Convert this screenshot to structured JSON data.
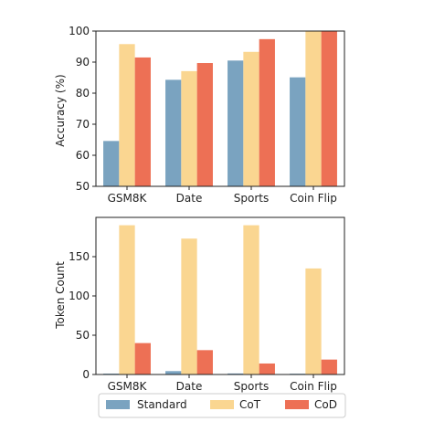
{
  "colors": {
    "Standard": "#7aa3c0",
    "CoT": "#fad691",
    "CoD": "#ed7055",
    "axis": "#222222",
    "legend_border": "#cccccc"
  },
  "legend": {
    "placement": "bottom-center",
    "entries": [
      "Standard",
      "CoT",
      "CoD"
    ]
  },
  "chart_data": [
    {
      "type": "bar",
      "title": "",
      "xlabel": "",
      "ylabel": "Accuracy (%)",
      "categories": [
        "GSM8K",
        "Date",
        "Sports",
        "Coin Flip"
      ],
      "ylim": [
        50,
        100
      ],
      "yticks": [
        50,
        60,
        70,
        80,
        90,
        100
      ],
      "grid": false,
      "series": [
        {
          "name": "Standard",
          "values": [
            64.6,
            84.3,
            90.5,
            85.1
          ]
        },
        {
          "name": "CoT",
          "values": [
            95.8,
            87.1,
            93.3,
            100.0
          ]
        },
        {
          "name": "CoD",
          "values": [
            91.5,
            89.7,
            97.4,
            100.0
          ]
        }
      ]
    },
    {
      "type": "bar",
      "title": "",
      "xlabel": "",
      "ylabel": "Token Count",
      "categories": [
        "GSM8K",
        "Date",
        "Sports",
        "Coin Flip"
      ],
      "ylim": [
        0,
        200
      ],
      "yticks": [
        0,
        50,
        100,
        150
      ],
      "grid": false,
      "series": [
        {
          "name": "Standard",
          "values": [
            1.1,
            4.3,
            1.3,
            1.0
          ]
        },
        {
          "name": "CoT",
          "values": [
            190,
            173,
            190,
            135
          ]
        },
        {
          "name": "CoD",
          "values": [
            40,
            31,
            14,
            19
          ]
        }
      ]
    }
  ]
}
